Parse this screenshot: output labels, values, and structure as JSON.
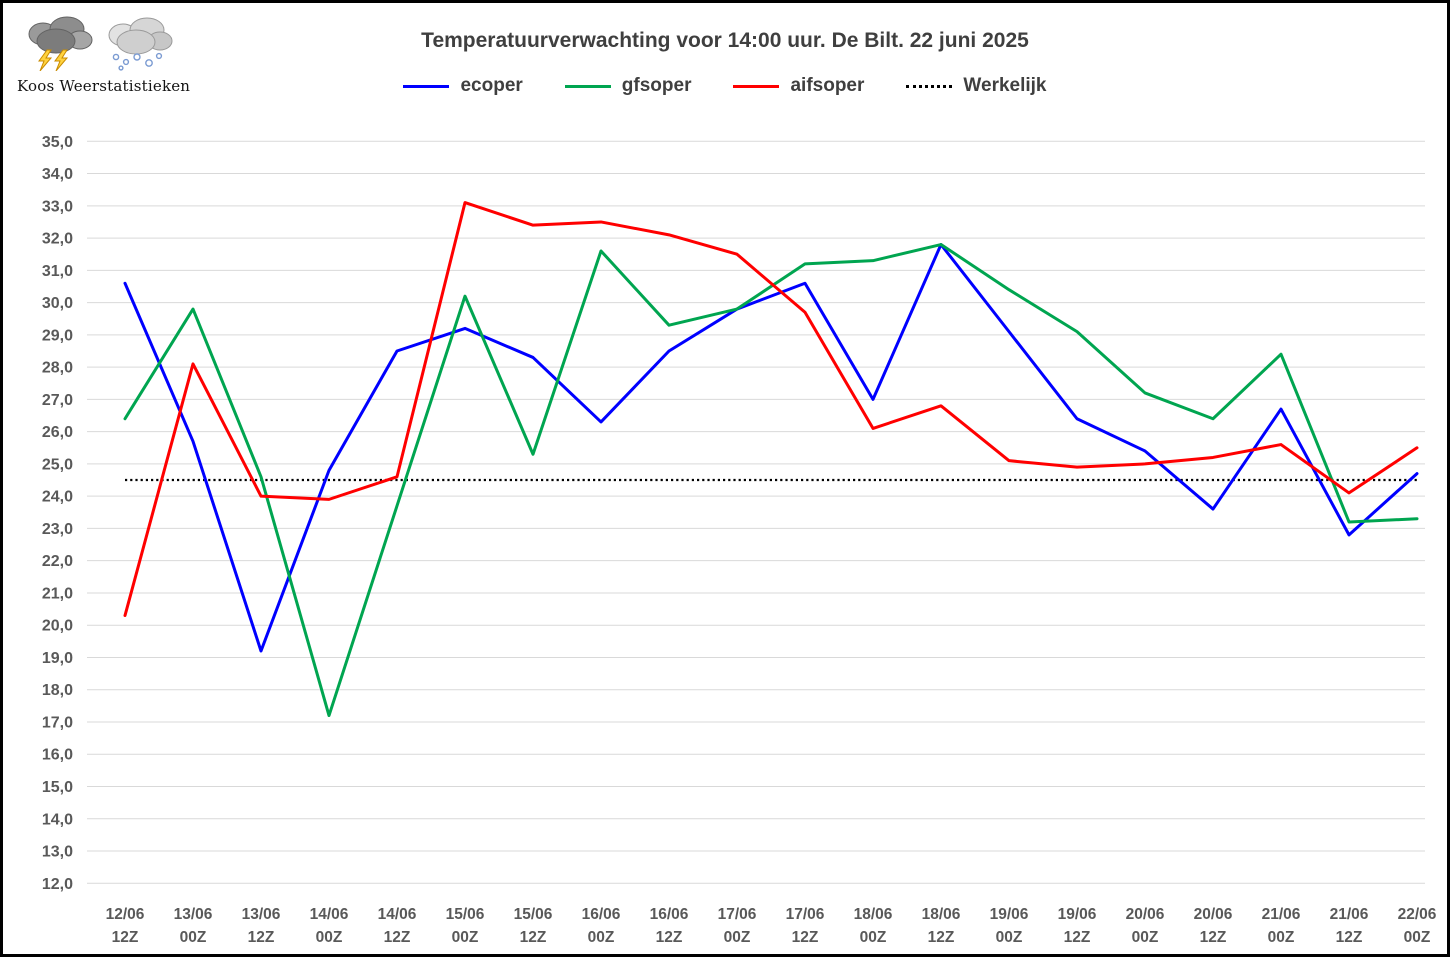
{
  "branding": {
    "name": "Koos Weerstatistieken",
    "icons": [
      "storm-cloud",
      "snow-cloud"
    ]
  },
  "chart_data": {
    "type": "line",
    "title": "Temperatuurverwachting voor 14:00 uur. De Bilt. 22 juni 2025",
    "categories": [
      "12/06 12Z",
      "13/06 00Z",
      "13/06 12Z",
      "14/06 00Z",
      "14/06 12Z",
      "15/06 00Z",
      "15/06 12Z",
      "16/06 00Z",
      "16/06 12Z",
      "17/06 00Z",
      "17/06 12Z",
      "18/06 00Z",
      "18/06 12Z",
      "19/06 00Z",
      "19/06 12Z",
      "20/06 00Z",
      "20/06 12Z",
      "21/06 00Z",
      "21/06 12Z",
      "22/06 00Z"
    ],
    "series": [
      {
        "name": "ecoper",
        "color": "#0000FF",
        "values": [
          30.6,
          25.7,
          19.2,
          24.8,
          28.5,
          29.2,
          28.3,
          26.3,
          28.5,
          29.8,
          30.6,
          27.0,
          31.8,
          29.1,
          26.4,
          25.4,
          23.6,
          26.7,
          22.8,
          24.7
        ]
      },
      {
        "name": "gfsoper",
        "color": "#00A550",
        "values": [
          26.4,
          29.8,
          24.6,
          17.2,
          23.7,
          30.2,
          25.3,
          31.6,
          29.3,
          29.8,
          31.2,
          31.3,
          31.8,
          30.4,
          29.1,
          27.2,
          26.4,
          28.4,
          23.2,
          23.3
        ]
      },
      {
        "name": "aifsoper",
        "color": "#FF0000",
        "values": [
          20.3,
          28.1,
          24.0,
          23.9,
          24.6,
          33.1,
          32.4,
          32.5,
          32.1,
          31.5,
          29.7,
          26.1,
          26.8,
          25.1,
          24.9,
          25.0,
          25.2,
          25.6,
          24.1,
          25.5
        ]
      }
    ],
    "werkelijk": {
      "label": "Werkelijk",
      "value": 24.5,
      "color": "#000000",
      "style": "dotted"
    },
    "ylim": [
      12,
      35
    ],
    "ytick_step": 1,
    "ytick_format": "comma-decimal",
    "xlabel": "",
    "ylabel": "",
    "grid": true,
    "legend_position": "top",
    "colors": {
      "grid": "#D9D9D9",
      "axis_labels": "#595959",
      "title": "#3F3F3F"
    }
  }
}
